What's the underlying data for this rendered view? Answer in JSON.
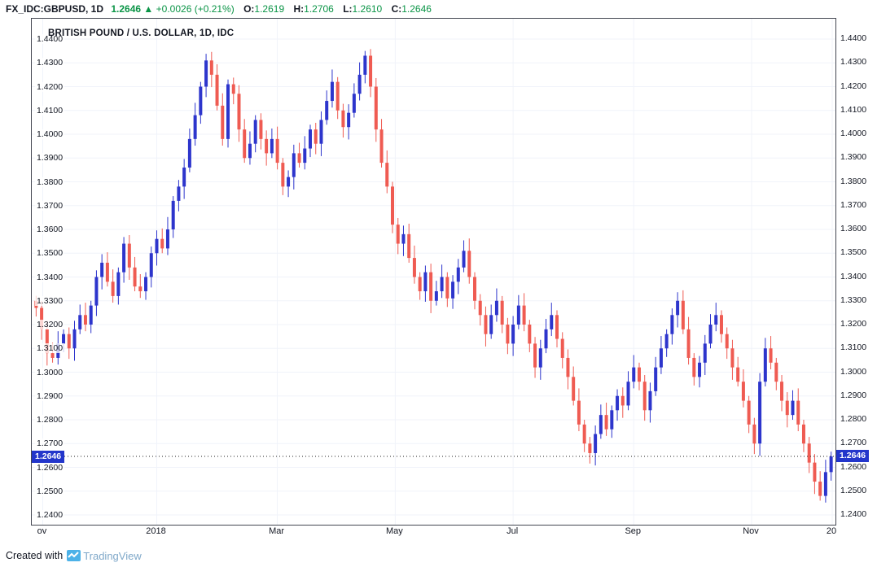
{
  "header": {
    "symbol": "FX_IDC:GBPUSD, 1D",
    "price": "1.2646",
    "arrow": "▲",
    "change": "+0.0026 (+0.21%)",
    "o_label": "O:",
    "o_value": "1.2619",
    "h_label": "H:",
    "h_value": "1.2706",
    "l_label": "L:",
    "l_value": "1.2610",
    "c_label": "C:",
    "c_value": "1.2646"
  },
  "panel": {
    "title": "BRITISH POUND / U.S. DOLLAR, 1D, IDC"
  },
  "footer": {
    "created_with": "Created with",
    "brand": "TradingView"
  },
  "chart_data": {
    "type": "candlestick",
    "symbol": "FX_IDC:GBPUSD",
    "timeframe": "1D",
    "title": "BRITISH POUND / U.S. DOLLAR, 1D, IDC",
    "ylim": [
      1.24,
      1.44
    ],
    "y_tick_step": 0.01,
    "y_tick_labels": [
      "1.2400",
      "1.2500",
      "1.2600",
      "1.2700",
      "1.2800",
      "1.2900",
      "1.3000",
      "1.3100",
      "1.3200",
      "1.3300",
      "1.3400",
      "1.3500",
      "1.3600",
      "1.3700",
      "1.3800",
      "1.3900",
      "1.4000",
      "1.4100",
      "1.4200",
      "1.4300",
      "1.4400"
    ],
    "x_ticks": [
      {
        "label": "ov",
        "i": 1.2
      },
      {
        "label": "2018",
        "i": 22
      },
      {
        "label": "Mar",
        "i": 44
      },
      {
        "label": "May",
        "i": 65.5
      },
      {
        "label": "Jul",
        "i": 87
      },
      {
        "label": "Sep",
        "i": 109
      },
      {
        "label": "Nov",
        "i": 130.5
      },
      {
        "label": "20",
        "i": 145.2
      }
    ],
    "last_price": 1.2646,
    "last_price_label": "1.2646",
    "ohlc_display": {
      "open": 1.2619,
      "high": 1.2706,
      "low": 1.261,
      "close": 1.2646,
      "change": 0.0026,
      "change_pct": 0.21
    },
    "up_color": "#2d35cc",
    "down_color": "#ef5b52",
    "grid_color": "#f0f3fa",
    "tag_color": "#2336cb",
    "first_open": 1.33,
    "wick_base": 0.002,
    "wick_var": 0.0008,
    "closes": [
      1.327,
      1.318,
      1.308,
      1.306,
      1.312,
      1.316,
      1.31,
      1.318,
      1.324,
      1.32,
      1.328,
      1.34,
      1.346,
      1.338,
      1.332,
      1.342,
      1.354,
      1.344,
      1.336,
      1.334,
      1.34,
      1.35,
      1.356,
      1.352,
      1.36,
      1.372,
      1.378,
      1.386,
      1.398,
      1.408,
      1.42,
      1.431,
      1.425,
      1.412,
      1.398,
      1.421,
      1.417,
      1.402,
      1.39,
      1.396,
      1.406,
      1.398,
      1.392,
      1.398,
      1.388,
      1.378,
      1.382,
      1.392,
      1.388,
      1.394,
      1.402,
      1.396,
      1.406,
      1.414,
      1.422,
      1.41,
      1.403,
      1.409,
      1.417,
      1.425,
      1.433,
      1.42,
      1.402,
      1.388,
      1.378,
      1.362,
      1.354,
      1.358,
      1.348,
      1.34,
      1.334,
      1.342,
      1.33,
      1.334,
      1.34,
      1.331,
      1.338,
      1.344,
      1.351,
      1.34,
      1.33,
      1.324,
      1.316,
      1.324,
      1.33,
      1.32,
      1.312,
      1.32,
      1.328,
      1.32,
      1.312,
      1.302,
      1.31,
      1.318,
      1.324,
      1.314,
      1.306,
      1.298,
      1.288,
      1.278,
      1.27,
      1.266,
      1.274,
      1.282,
      1.276,
      1.284,
      1.29,
      1.286,
      1.296,
      1.302,
      1.296,
      1.284,
      1.292,
      1.302,
      1.31,
      1.316,
      1.324,
      1.33,
      1.318,
      1.306,
      1.298,
      1.304,
      1.312,
      1.32,
      1.324,
      1.316,
      1.31,
      1.302,
      1.296,
      1.288,
      1.278,
      1.27,
      1.296,
      1.31,
      1.304,
      1.296,
      1.288,
      1.282,
      1.288,
      1.278,
      1.27,
      1.262,
      1.254,
      1.248,
      1.258,
      1.2646
    ]
  }
}
